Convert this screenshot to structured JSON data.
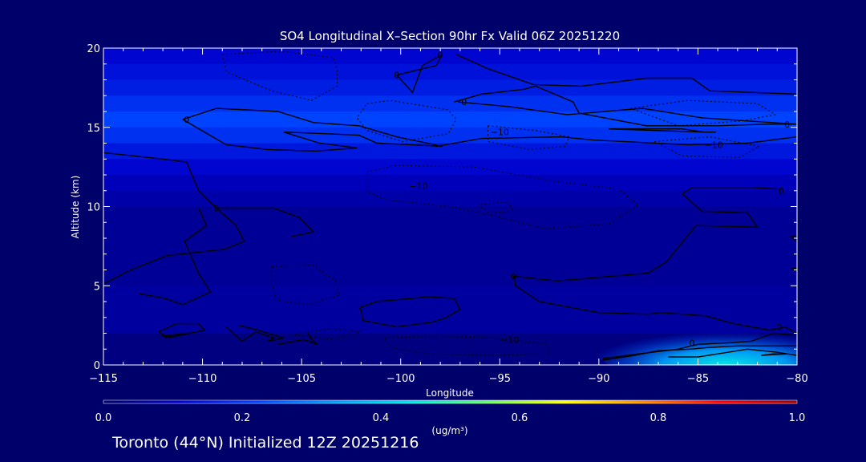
{
  "chart_data": {
    "type": "contour",
    "title": "SO4 Longitudinal X–Section 90hr  Fx Valid 06Z 20251220",
    "xlabel": "Longitude",
    "ylabel": "Altitude (km)",
    "xlim": [
      -115,
      -80
    ],
    "ylim": [
      0,
      20
    ],
    "x_ticks": [
      -115,
      -110,
      -105,
      -100,
      -95,
      -90,
      -85,
      -80
    ],
    "x_tick_labels": [
      "−115",
      "−110",
      "−105",
      "−100",
      "−95",
      "−90",
      "−85",
      "−80"
    ],
    "y_ticks": [
      0,
      5,
      10,
      15,
      20
    ],
    "y_tick_labels": [
      "0",
      "5",
      "10",
      "15",
      "20"
    ],
    "colorbar": {
      "range": [
        0.0,
        1.0
      ],
      "ticks": [
        0.0,
        0.2,
        0.4,
        0.6,
        0.8,
        1.0
      ],
      "tick_labels": [
        "0.0",
        "0.2",
        "0.4",
        "0.6",
        "0.8",
        "1.0"
      ],
      "units": "(ug/m³)",
      "colors": [
        "#00006b",
        "#0000cc",
        "#0044ff",
        "#00a0ff",
        "#00e6e6",
        "#66ff66",
        "#ffff00",
        "#ff8c00",
        "#ff0000",
        "#a00000"
      ]
    },
    "fill_bands": [
      {
        "alt_range": [
          19,
          20
        ],
        "value": 0.12
      },
      {
        "alt_range": [
          18,
          19
        ],
        "value": 0.14
      },
      {
        "alt_range": [
          17,
          18
        ],
        "value": 0.16
      },
      {
        "alt_range": [
          16,
          17
        ],
        "value": 0.19
      },
      {
        "alt_range": [
          15,
          16
        ],
        "value": 0.22
      },
      {
        "alt_range": [
          14,
          15
        ],
        "value": 0.19
      },
      {
        "alt_range": [
          13,
          14
        ],
        "value": 0.15
      },
      {
        "alt_range": [
          12,
          13
        ],
        "value": 0.12
      },
      {
        "alt_range": [
          11,
          12
        ],
        "value": 0.09
      },
      {
        "alt_range": [
          10,
          11
        ],
        "value": 0.07
      },
      {
        "alt_range": [
          5,
          10
        ],
        "value": 0.05
      },
      {
        "alt_range": [
          2,
          5
        ],
        "value": 0.06
      }
    ],
    "hotspot": {
      "lon_range": [
        -90,
        -80
      ],
      "alt_range": [
        0,
        1.5
      ],
      "max_value": 0.38
    },
    "contour_labels": [
      {
        "text": "0",
        "lon": -98,
        "alt": 19.6
      },
      {
        "text": "0",
        "lon": -100.2,
        "alt": 18.3
      },
      {
        "text": "0",
        "lon": -96.8,
        "alt": 16.6
      },
      {
        "text": "0",
        "lon": -110.8,
        "alt": 15.5
      },
      {
        "text": "−10",
        "lon": -95,
        "alt": 14.7
      },
      {
        "text": "−10",
        "lon": -84.2,
        "alt": 13.9
      },
      {
        "text": "0",
        "lon": -80.5,
        "alt": 15.2
      },
      {
        "text": "−10",
        "lon": -99.1,
        "alt": 11.3
      },
      {
        "text": "0",
        "lon": -109.3,
        "alt": 9.9
      },
      {
        "text": "0",
        "lon": -80.8,
        "alt": 11.0
      },
      {
        "text": "0",
        "lon": -94.3,
        "alt": 5.6
      },
      {
        "text": "0",
        "lon": -80.9,
        "alt": 2.4
      },
      {
        "text": "−10",
        "lon": -94.5,
        "alt": 1.6
      },
      {
        "text": "0",
        "lon": -85.3,
        "alt": 1.4
      }
    ],
    "contours_solid": [
      [
        [
          -115,
          13.4
        ],
        [
          -112,
          13
        ],
        [
          -110.8,
          12.8
        ],
        [
          -110.2,
          11
        ],
        [
          -109.3,
          9.9
        ],
        [
          -108.3,
          8.8
        ],
        [
          -107.9,
          7.8
        ],
        [
          -108.9,
          7.3
        ],
        [
          -111.8,
          6.9
        ],
        [
          -113.8,
          5.9
        ],
        [
          -115,
          5.1
        ]
      ],
      [
        [
          -111,
          15.5
        ],
        [
          -109.3,
          16.2
        ],
        [
          -106.2,
          16
        ],
        [
          -104.4,
          15.3
        ],
        [
          -102.1,
          15.1
        ],
        [
          -100.2,
          14.4
        ],
        [
          -97.9,
          13.8
        ],
        [
          -101.2,
          14
        ],
        [
          -102.1,
          14.5
        ],
        [
          -103.8,
          14.6
        ],
        [
          -105.9,
          14.7
        ],
        [
          -104.1,
          14
        ],
        [
          -102.2,
          13.7
        ],
        [
          -104.3,
          13.5
        ],
        [
          -106.7,
          13.6
        ],
        [
          -108.8,
          13.9
        ],
        [
          -111,
          15.5
        ]
      ],
      [
        [
          -97.2,
          19.6
        ],
        [
          -95.6,
          18.7
        ],
        [
          -93.3,
          17.7
        ],
        [
          -90.9,
          17.6
        ],
        [
          -87.6,
          18.1
        ],
        [
          -85.3,
          18.1
        ],
        [
          -84.4,
          17.3
        ],
        [
          -80,
          17.1
        ]
      ],
      [
        [
          -97.3,
          16.6
        ],
        [
          -95.9,
          17.1
        ],
        [
          -93.8,
          17.4
        ],
        [
          -93.2,
          17.6
        ],
        [
          -91.3,
          16.6
        ],
        [
          -91,
          15.9
        ],
        [
          -87.6,
          15.1
        ],
        [
          -84,
          15.1
        ],
        [
          -81.5,
          15.2
        ],
        [
          -80,
          15.2
        ]
      ],
      [
        [
          -97.9,
          19.6
        ],
        [
          -98.2,
          18.9
        ],
        [
          -99.2,
          18.6
        ],
        [
          -100.2,
          18.3
        ],
        [
          -99.4,
          17.2
        ],
        [
          -98.9,
          18.9
        ],
        [
          -97.9,
          19.6
        ]
      ],
      [
        [
          -97.1,
          16.6
        ],
        [
          -94.5,
          16.3
        ],
        [
          -91.6,
          15.8
        ],
        [
          -87.8,
          16.2
        ],
        [
          -84.8,
          15.6
        ],
        [
          -82.5,
          15.4
        ],
        [
          -80,
          15.2
        ]
      ],
      [
        [
          -89.5,
          14.9
        ],
        [
          -84.7,
          14.7
        ],
        [
          -85.8,
          14.9
        ],
        [
          -89.5,
          14.9
        ]
      ],
      [
        [
          -84.7,
          14.7
        ],
        [
          -84.1,
          14.7
        ]
      ],
      [
        [
          -98.2,
          13.8
        ],
        [
          -95.9,
          14.3
        ],
        [
          -91.9,
          14.4
        ],
        [
          -90.3,
          14.2
        ],
        [
          -85.5,
          13.9
        ],
        [
          -82.5,
          14
        ],
        [
          -80,
          14.4
        ]
      ],
      [
        [
          -80.8,
          11.1
        ],
        [
          -82.3,
          11.2
        ],
        [
          -85.3,
          11.2
        ],
        [
          -85.8,
          10.8
        ],
        [
          -84.8,
          9.7
        ],
        [
          -82.5,
          9.6
        ],
        [
          -82,
          8.7
        ],
        [
          -85.1,
          8.8
        ],
        [
          -86.6,
          6.5
        ],
        [
          -87.5,
          5.8
        ],
        [
          -92.1,
          5.3
        ],
        [
          -94.3,
          5.6
        ],
        [
          -94.2,
          5
        ],
        [
          -93,
          4
        ],
        [
          -90,
          3.3
        ],
        [
          -87.5,
          3.2
        ],
        [
          -86.9,
          3.3
        ],
        [
          -84.6,
          3.1
        ],
        [
          -83.2,
          2.6
        ],
        [
          -81.4,
          2.2
        ],
        [
          -80.6,
          2.4
        ],
        [
          -80,
          2
        ]
      ],
      [
        [
          -80,
          8.1
        ],
        [
          -80,
          7.8
        ],
        [
          -80.3,
          8.1
        ],
        [
          -80,
          8.1
        ]
      ],
      [
        [
          -80,
          6.1
        ],
        [
          -80.3,
          6.1
        ]
      ],
      [
        [
          -109.3,
          9.9
        ],
        [
          -107.7,
          9.9
        ],
        [
          -106.4,
          9.9
        ],
        [
          -105.1,
          9.3
        ],
        [
          -104.4,
          8.4
        ],
        [
          -105.5,
          8.1
        ]
      ],
      [
        [
          -110.2,
          9.9
        ],
        [
          -109.8,
          8.8
        ],
        [
          -110.9,
          7.8
        ],
        [
          -110.2,
          5.8
        ],
        [
          -109.6,
          4.6
        ],
        [
          -111,
          3.8
        ],
        [
          -111.9,
          4.2
        ],
        [
          -113.2,
          4.5
        ]
      ],
      [
        [
          -102.1,
          3.6
        ],
        [
          -101.2,
          4
        ],
        [
          -98.6,
          4.3
        ],
        [
          -97.3,
          4.2
        ],
        [
          -97,
          3.5
        ],
        [
          -97.7,
          3
        ],
        [
          -98.4,
          2.7
        ],
        [
          -100.2,
          2.4
        ],
        [
          -101.9,
          2.8
        ],
        [
          -102,
          3.5
        ],
        [
          -102.1,
          3.6
        ]
      ],
      [
        [
          -111.8,
          1.7
        ],
        [
          -112.2,
          2.1
        ],
        [
          -111.3,
          2.6
        ],
        [
          -110.2,
          2.6
        ],
        [
          -109.9,
          2.2
        ],
        [
          -111.8,
          1.7
        ]
      ],
      [
        [
          -111.9,
          1.8
        ],
        [
          -110.8,
          2
        ],
        [
          -112.1,
          1.8
        ]
      ],
      [
        [
          -108.8,
          2.4
        ],
        [
          -108,
          1.5
        ],
        [
          -107.3,
          2.1
        ],
        [
          -106.4,
          1.7
        ],
        [
          -106.7,
          1.5
        ],
        [
          -105.9,
          1.7
        ],
        [
          -107.2,
          2.2
        ],
        [
          -108.2,
          2.5
        ]
      ],
      [
        [
          -106.2,
          1.3
        ],
        [
          -104.9,
          1.6
        ],
        [
          -104.2,
          1.3
        ],
        [
          -104.5,
          1.6
        ],
        [
          -104.7,
          2
        ]
      ],
      [
        [
          -89.8,
          0.3
        ],
        [
          -88.2,
          0.6
        ],
        [
          -87,
          0.9
        ],
        [
          -85.4,
          1
        ],
        [
          -84.5,
          1.1
        ],
        [
          -83,
          1.2
        ],
        [
          -81.5,
          1.2
        ],
        [
          -80,
          1.2
        ]
      ],
      [
        [
          -89.8,
          0.4
        ],
        [
          -88,
          0.7
        ],
        [
          -86,
          1
        ],
        [
          -85,
          1.3
        ],
        [
          -83.5,
          1.4
        ],
        [
          -82.3,
          1.5
        ],
        [
          -81.2,
          2
        ],
        [
          -80.2,
          1.9
        ]
      ],
      [
        [
          -86.5,
          0.5
        ],
        [
          -85,
          0.5
        ],
        [
          -84,
          0.7
        ],
        [
          -82.5,
          1
        ],
        [
          -81,
          0.8
        ],
        [
          -80,
          0.6
        ]
      ],
      [
        [
          -81.8,
          0.6
        ],
        [
          -81.2,
          0.7
        ],
        [
          -80.5,
          0.7
        ],
        [
          -81.8,
          0.6
        ]
      ]
    ],
    "contours_dashed": [
      [
        [
          -109,
          19.6
        ],
        [
          -106,
          19.8
        ],
        [
          -103.4,
          19.4
        ],
        [
          -103.2,
          18.6
        ],
        [
          -103.2,
          17.6
        ],
        [
          -104.5,
          16.7
        ],
        [
          -106.5,
          17.3
        ],
        [
          -108.8,
          18.5
        ],
        [
          -109,
          19.6
        ]
      ],
      [
        [
          -101.7,
          16.5
        ],
        [
          -100.5,
          16.7
        ],
        [
          -97.6,
          16.1
        ],
        [
          -97.2,
          15.5
        ],
        [
          -97.6,
          14.6
        ],
        [
          -99.9,
          14.1
        ],
        [
          -101.7,
          14.8
        ],
        [
          -102.2,
          15.6
        ],
        [
          -101.7,
          16.5
        ]
      ],
      [
        [
          -95.6,
          15.1
        ],
        [
          -93.2,
          14.8
        ],
        [
          -91.5,
          14.4
        ],
        [
          -91.7,
          13.8
        ],
        [
          -93.5,
          13.6
        ],
        [
          -95.6,
          14.1
        ],
        [
          -95.6,
          15.1
        ]
      ],
      [
        [
          -88.4,
          16.2
        ],
        [
          -85.5,
          16.7
        ],
        [
          -82,
          16.5
        ],
        [
          -81.1,
          15.8
        ],
        [
          -82.8,
          15.4
        ],
        [
          -86,
          15.1
        ],
        [
          -88.4,
          16.2
        ]
      ],
      [
        [
          -87.2,
          14.1
        ],
        [
          -84.4,
          14.4
        ],
        [
          -81.9,
          13.8
        ],
        [
          -82.9,
          13.1
        ],
        [
          -85.8,
          13.2
        ],
        [
          -87.2,
          14.1
        ]
      ],
      [
        [
          -101.7,
          12.2
        ],
        [
          -100.2,
          12.6
        ],
        [
          -96.3,
          12.5
        ],
        [
          -92.3,
          11.6
        ],
        [
          -89,
          11.1
        ],
        [
          -88,
          10.1
        ],
        [
          -89.5,
          8.9
        ],
        [
          -92.7,
          8.6
        ],
        [
          -95.6,
          9.5
        ],
        [
          -97.5,
          10
        ],
        [
          -100.6,
          10.4
        ],
        [
          -101.7,
          10.9
        ],
        [
          -101.7,
          12.2
        ]
      ],
      [
        [
          -94.6,
          10.3
        ],
        [
          -94.3,
          9.7
        ],
        [
          -95.5,
          9.6
        ],
        [
          -96.1,
          10.1
        ],
        [
          -94.6,
          10.3
        ]
      ],
      [
        [
          -106.5,
          6.2
        ],
        [
          -104.4,
          6.3
        ],
        [
          -103.3,
          5.3
        ],
        [
          -103.1,
          4.4
        ],
        [
          -104.7,
          3.8
        ],
        [
          -106.3,
          4.1
        ],
        [
          -106.5,
          5.2
        ],
        [
          -106.5,
          6.2
        ]
      ],
      [
        [
          -100.8,
          1.7
        ],
        [
          -98.2,
          1.8
        ],
        [
          -95.2,
          1.7
        ],
        [
          -92.6,
          1.3
        ],
        [
          -92.5,
          0.7
        ],
        [
          -95.3,
          0.6
        ],
        [
          -98.6,
          0.7
        ],
        [
          -100.5,
          1.1
        ],
        [
          -100.8,
          1.7
        ]
      ],
      [
        [
          -105.5,
          1.9
        ],
        [
          -103.5,
          2.3
        ],
        [
          -102,
          2.1
        ],
        [
          -103.3,
          1.6
        ],
        [
          -105.5,
          1.9
        ]
      ]
    ]
  },
  "footer": "Toronto (44°N) Initialized 12Z 20251216"
}
